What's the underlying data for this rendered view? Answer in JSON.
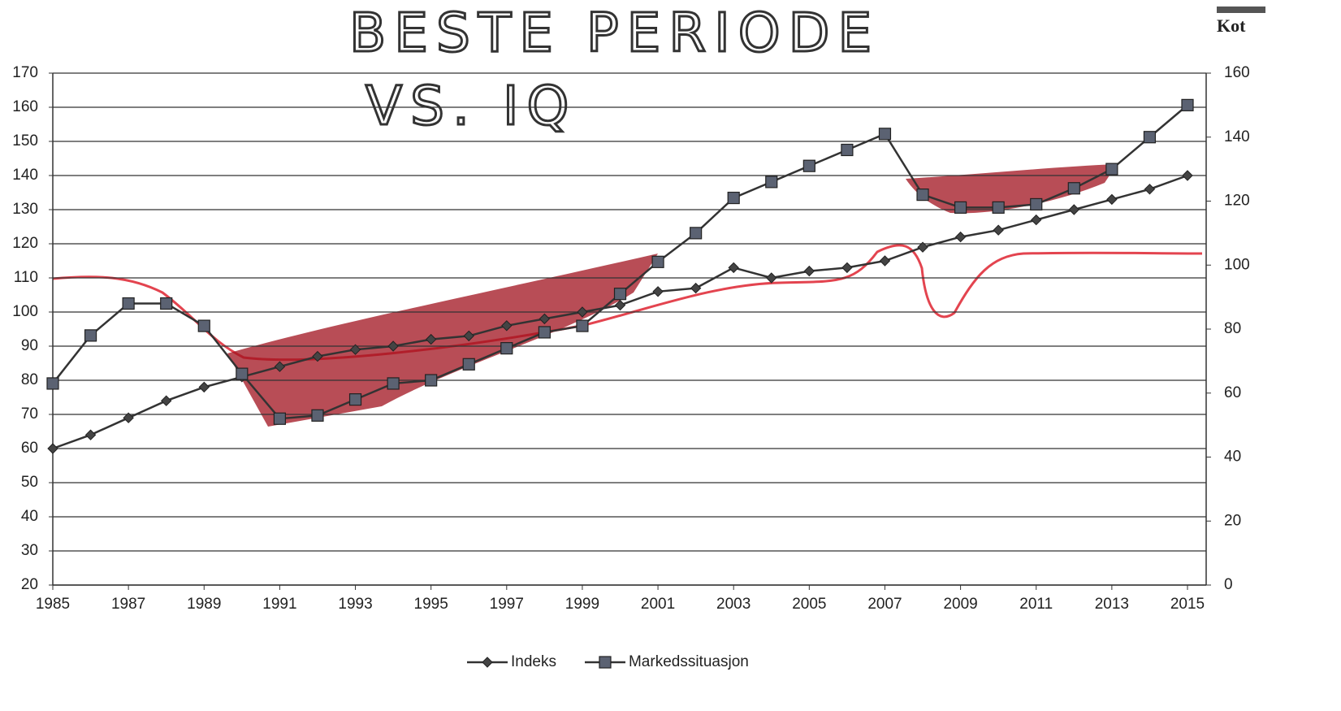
{
  "chart_data": {
    "type": "line",
    "annotations": [
      "BESTE PERIODE",
      "VS. IQ"
    ],
    "y2label": "Kot",
    "x": [
      1985,
      1986,
      1987,
      1988,
      1989,
      1990,
      1991,
      1992,
      1993,
      1994,
      1995,
      1996,
      1997,
      1998,
      1999,
      2000,
      2001,
      2002,
      2003,
      2004,
      2005,
      2006,
      2007,
      2008,
      2009,
      2010,
      2011,
      2012,
      2013,
      2014,
      2015
    ],
    "xlim": [
      1985,
      2015
    ],
    "xticks": [
      1985,
      1987,
      1989,
      1991,
      1993,
      1995,
      1997,
      1999,
      2001,
      2003,
      2005,
      2007,
      2009,
      2011,
      2013,
      2015
    ],
    "ylim": [
      20,
      170
    ],
    "yticks": [
      20,
      30,
      40,
      50,
      60,
      70,
      80,
      90,
      100,
      110,
      120,
      130,
      140,
      150,
      160,
      170
    ],
    "y2lim": [
      0,
      160
    ],
    "y2ticks": [
      0,
      20,
      40,
      60,
      80,
      100,
      120,
      140,
      160
    ],
    "grid": true,
    "legend": "bottom",
    "series": [
      {
        "name": "Indeks",
        "color": "#333333",
        "marker": "diamond",
        "values": [
          60,
          64,
          69,
          74,
          78,
          81,
          84,
          87,
          89,
          90,
          92,
          93,
          96,
          98,
          100,
          102,
          106,
          107,
          113,
          110,
          112,
          113,
          115,
          119,
          122,
          124,
          127,
          130,
          133,
          136,
          140
        ]
      },
      {
        "name": "Markedssituasjon",
        "color": "#333333",
        "marker": "square",
        "axis": "y2",
        "values": [
          63,
          78,
          88,
          88,
          81,
          66,
          52,
          53,
          58,
          63,
          64,
          69,
          74,
          79,
          81,
          91,
          101,
          110,
          121,
          126,
          131,
          136,
          141,
          122,
          118,
          118,
          119,
          124,
          130,
          140,
          150
        ]
      }
    ]
  }
}
